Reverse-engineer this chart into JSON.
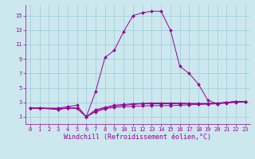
{
  "xlabel": "Windchill (Refroidissement éolien,°C)",
  "xlim": [
    -0.5,
    23.5
  ],
  "ylim": [
    0,
    16.5
  ],
  "xticks": [
    0,
    1,
    2,
    3,
    4,
    5,
    6,
    7,
    8,
    9,
    10,
    11,
    12,
    13,
    14,
    15,
    16,
    17,
    18,
    19,
    20,
    21,
    22,
    23
  ],
  "yticks": [
    1,
    3,
    5,
    7,
    9,
    11,
    13,
    15
  ],
  "background_color": "#cce8ee",
  "grid_color": "#99ccd6",
  "line_color": "#990099",
  "series": [
    {
      "x": [
        0,
        1,
        3,
        4,
        5,
        6,
        7,
        8,
        9,
        10,
        11,
        12,
        13,
        14,
        15,
        16,
        17,
        18,
        19,
        20,
        21,
        22,
        23
      ],
      "y": [
        2.2,
        2.2,
        2.2,
        2.4,
        2.6,
        1.0,
        4.5,
        9.2,
        10.2,
        12.8,
        15.0,
        15.4,
        15.6,
        15.6,
        13.0,
        8.0,
        7.0,
        5.5,
        3.3,
        2.8,
        3.0,
        3.1,
        3.1
      ]
    },
    {
      "x": [
        0,
        1,
        3,
        4,
        5,
        6,
        7,
        8,
        9,
        10,
        11,
        12,
        13,
        14,
        15,
        16,
        17,
        18,
        19,
        20,
        21,
        22,
        23
      ],
      "y": [
        2.2,
        2.2,
        2.1,
        2.2,
        2.2,
        1.0,
        1.8,
        2.2,
        2.5,
        2.6,
        2.7,
        2.8,
        2.8,
        2.8,
        2.8,
        2.8,
        2.8,
        2.8,
        2.8,
        2.85,
        3.0,
        3.1,
        3.1
      ]
    },
    {
      "x": [
        0,
        1,
        3,
        4,
        5,
        6,
        7,
        8,
        9,
        10,
        11,
        12,
        13,
        14,
        15,
        16,
        17,
        18,
        19,
        20,
        21,
        22,
        23
      ],
      "y": [
        2.2,
        2.2,
        2.1,
        2.2,
        2.2,
        1.0,
        2.0,
        2.3,
        2.6,
        2.7,
        2.8,
        2.85,
        2.9,
        2.9,
        2.9,
        2.9,
        2.85,
        2.85,
        2.85,
        2.9,
        3.0,
        3.1,
        3.1
      ]
    },
    {
      "x": [
        0,
        1,
        3,
        4,
        5,
        6,
        7,
        8,
        9,
        10,
        11,
        12,
        13,
        14,
        15,
        16,
        17,
        18,
        19,
        20,
        21,
        22,
        23
      ],
      "y": [
        2.2,
        2.2,
        2.0,
        2.2,
        2.2,
        1.0,
        1.7,
        2.1,
        2.3,
        2.4,
        2.45,
        2.5,
        2.55,
        2.55,
        2.55,
        2.6,
        2.65,
        2.7,
        2.75,
        2.8,
        2.9,
        3.0,
        3.1
      ]
    }
  ],
  "tick_fontsize": 5,
  "label_fontsize": 6
}
